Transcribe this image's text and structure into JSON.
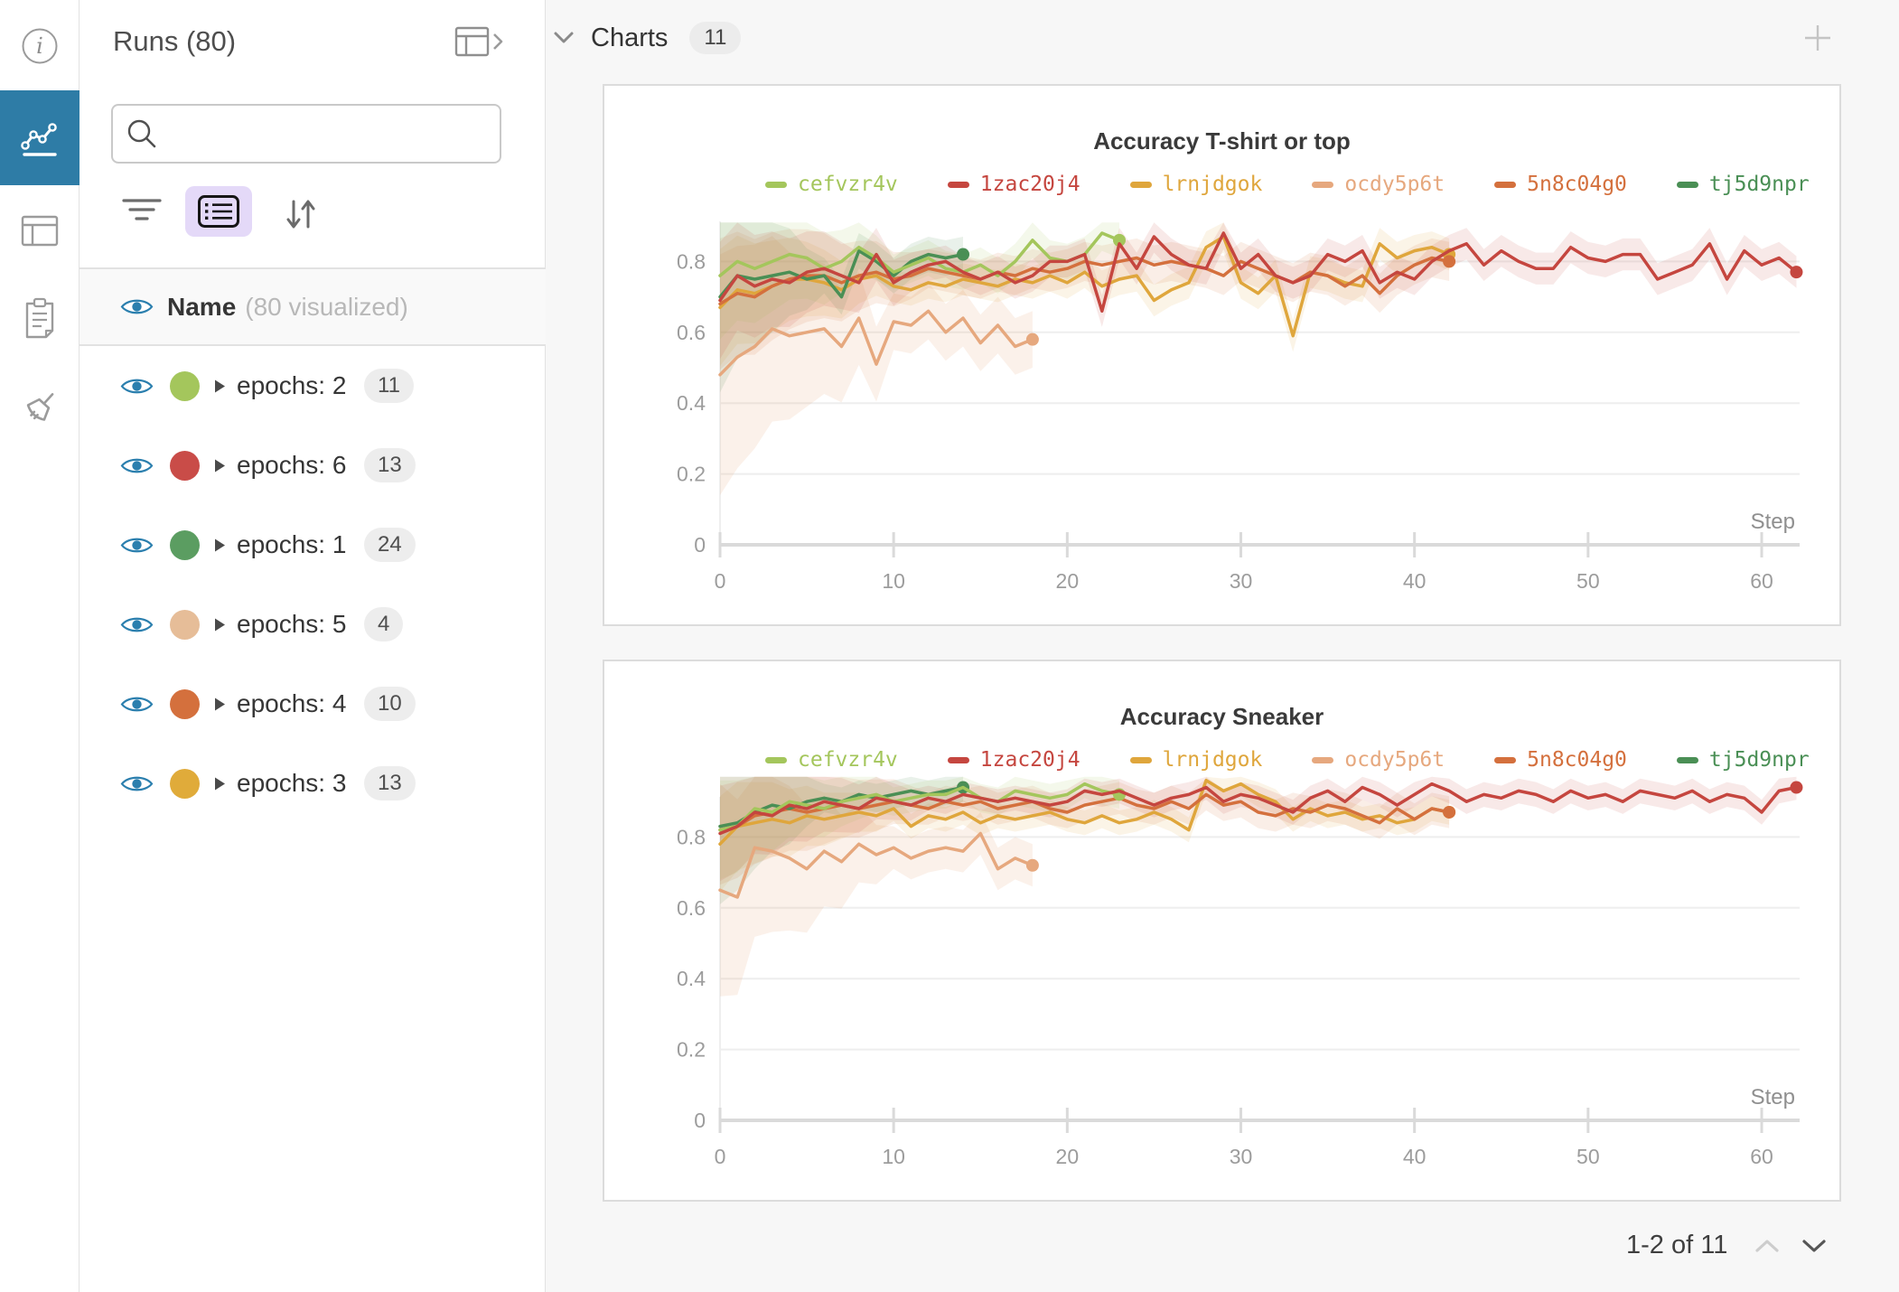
{
  "rail": {
    "items": [
      {
        "icon": "info-icon",
        "selected": false
      },
      {
        "icon": "line-chart-panel-icon",
        "selected": true
      },
      {
        "icon": "table-icon",
        "selected": false
      },
      {
        "icon": "clipboard-icon",
        "selected": false
      },
      {
        "icon": "broom-icon",
        "selected": false
      }
    ],
    "selected_bg": "#2e7ca6"
  },
  "runs_panel": {
    "title": "Runs (80)",
    "search": {
      "placeholder": "",
      "icon": "search-icon"
    },
    "header_row": {
      "label": "Name",
      "sublabel": "(80 visualized)"
    },
    "eye_color": "#2b7fae",
    "groups": [
      {
        "label": "epochs: 2",
        "count": "11",
        "color": "#a4c65c"
      },
      {
        "label": "epochs: 6",
        "count": "13",
        "color": "#c94c48"
      },
      {
        "label": "epochs: 1",
        "count": "24",
        "color": "#5b9d61"
      },
      {
        "label": "epochs: 5",
        "count": "4",
        "color": "#e6bd98"
      },
      {
        "label": "epochs: 4",
        "count": "10",
        "color": "#d4703d"
      },
      {
        "label": "epochs: 3",
        "count": "13",
        "color": "#e0ab3a"
      }
    ]
  },
  "main": {
    "section": {
      "label": "Charts",
      "count": "11"
    },
    "pagination": {
      "label": "1-2 of 11"
    }
  },
  "chart_data": [
    {
      "type": "line",
      "title": "Accuracy T-shirt or top",
      "xlabel": "Step",
      "x_ticks": [
        0,
        10,
        20,
        30,
        40,
        50,
        60
      ],
      "y_ticks": [
        0,
        0.2,
        0.4,
        0.6,
        0.8
      ],
      "xlim": [
        0,
        62
      ],
      "ylim": [
        0,
        0.95
      ],
      "grid": true,
      "legend_position": "top",
      "band_clip": [
        0.08,
        0.91
      ],
      "draw_order": [
        3,
        2,
        4,
        5,
        0,
        1
      ],
      "series": [
        {
          "name": "cefvzr4v",
          "color": "#a4c65c",
          "band": [
            0.05,
            0.13,
            10
          ],
          "band_opacity": 0.12,
          "x_start": 0,
          "x_step": 1,
          "y": [
            0.76,
            0.8,
            0.78,
            0.8,
            0.82,
            0.81,
            0.78,
            0.8,
            0.84,
            0.81,
            0.77,
            0.79,
            0.81,
            0.78,
            0.77,
            0.79,
            0.76,
            0.8,
            0.86,
            0.81,
            0.8,
            0.82,
            0.88,
            0.86
          ]
        },
        {
          "name": "1zac20j4",
          "color": "#c5463f",
          "band": [
            0.045,
            0.12,
            12
          ],
          "band_opacity": 0.12,
          "x_start": 0,
          "x_step": 1,
          "y": [
            0.69,
            0.76,
            0.73,
            0.75,
            0.74,
            0.77,
            0.78,
            0.76,
            0.74,
            0.82,
            0.74,
            0.77,
            0.79,
            0.8,
            0.77,
            0.75,
            0.77,
            0.74,
            0.76,
            0.8,
            0.8,
            0.82,
            0.66,
            0.85,
            0.78,
            0.87,
            0.82,
            0.79,
            0.78,
            0.88,
            0.78,
            0.82,
            0.76,
            0.74,
            0.76,
            0.82,
            0.8,
            0.83,
            0.74,
            0.77,
            0.75,
            0.8,
            0.83,
            0.85,
            0.79,
            0.83,
            0.8,
            0.78,
            0.78,
            0.84,
            0.81,
            0.8,
            0.82,
            0.82,
            0.75,
            0.77,
            0.79,
            0.85,
            0.75,
            0.83,
            0.79,
            0.81,
            0.77
          ]
        },
        {
          "name": "lrnjdgok",
          "color": "#dfa63c",
          "band": [
            0.045,
            0.12,
            10
          ],
          "band_opacity": 0.12,
          "x_start": 0,
          "x_step": 1,
          "y": [
            0.67,
            0.72,
            0.71,
            0.73,
            0.75,
            0.75,
            0.74,
            0.72,
            0.75,
            0.76,
            0.73,
            0.72,
            0.74,
            0.73,
            0.75,
            0.74,
            0.73,
            0.75,
            0.74,
            0.76,
            0.74,
            0.77,
            0.73,
            0.75,
            0.76,
            0.69,
            0.72,
            0.74,
            0.84,
            0.87,
            0.74,
            0.71,
            0.76,
            0.59,
            0.77,
            0.76,
            0.74,
            0.73,
            0.85,
            0.81,
            0.83,
            0.84,
            0.82
          ]
        },
        {
          "name": "ocdy5p6t",
          "color": "#e6a87e",
          "band": [
            0.08,
            0.26,
            10
          ],
          "band_opacity": 0.16,
          "x_start": 0,
          "x_step": 1,
          "y": [
            0.48,
            0.53,
            0.56,
            0.61,
            0.59,
            0.6,
            0.61,
            0.56,
            0.64,
            0.51,
            0.63,
            0.62,
            0.66,
            0.6,
            0.64,
            0.57,
            0.62,
            0.56,
            0.58
          ]
        },
        {
          "name": "5n8c04g0",
          "color": "#d4703d",
          "band": [
            0.055,
            0.13,
            12
          ],
          "band_opacity": 0.12,
          "x_start": 0,
          "x_step": 1,
          "y": [
            0.68,
            0.71,
            0.7,
            0.73,
            0.75,
            0.76,
            0.76,
            0.74,
            0.76,
            0.77,
            0.75,
            0.76,
            0.78,
            0.77,
            0.76,
            0.75,
            0.77,
            0.76,
            0.78,
            0.77,
            0.78,
            0.8,
            0.79,
            0.8,
            0.81,
            0.79,
            0.8,
            0.79,
            0.78,
            0.76,
            0.8,
            0.78,
            0.76,
            0.74,
            0.77,
            0.76,
            0.73,
            0.76,
            0.71,
            0.76,
            0.79,
            0.81,
            0.8
          ]
        },
        {
          "name": "tj5d9npr",
          "color": "#4a8f55",
          "band": [
            0.05,
            0.22,
            6
          ],
          "band_opacity": 0.12,
          "x_start": 0,
          "x_step": 1,
          "y": [
            0.7,
            0.76,
            0.75,
            0.76,
            0.77,
            0.75,
            0.76,
            0.7,
            0.83,
            0.8,
            0.76,
            0.8,
            0.82,
            0.81,
            0.82
          ]
        }
      ]
    },
    {
      "type": "line",
      "title": "Accuracy Sneaker",
      "xlabel": "Step",
      "x_ticks": [
        0,
        10,
        20,
        30,
        40,
        50,
        60
      ],
      "y_ticks": [
        0,
        0.2,
        0.4,
        0.6,
        0.8
      ],
      "xlim": [
        0,
        62
      ],
      "ylim": [
        0,
        0.97
      ],
      "grid": true,
      "legend_position": "top",
      "band_clip": [
        0.1,
        0.97
      ],
      "draw_order": [
        3,
        2,
        4,
        5,
        0,
        1
      ],
      "series": [
        {
          "name": "cefvzr4v",
          "color": "#a4c65c",
          "band": [
            0.04,
            0.1,
            10
          ],
          "band_opacity": 0.12,
          "x_start": 0,
          "x_step": 1,
          "y": [
            0.82,
            0.83,
            0.88,
            0.87,
            0.9,
            0.89,
            0.88,
            0.9,
            0.91,
            0.92,
            0.9,
            0.91,
            0.92,
            0.92,
            0.94,
            0.91,
            0.9,
            0.93,
            0.92,
            0.91,
            0.92,
            0.95,
            0.93,
            0.92
          ]
        },
        {
          "name": "1zac20j4",
          "color": "#c5463f",
          "band": [
            0.035,
            0.1,
            12
          ],
          "band_opacity": 0.12,
          "x_start": 0,
          "x_step": 1,
          "y": [
            0.81,
            0.83,
            0.87,
            0.86,
            0.89,
            0.88,
            0.9,
            0.89,
            0.88,
            0.91,
            0.9,
            0.89,
            0.91,
            0.9,
            0.92,
            0.91,
            0.9,
            0.91,
            0.9,
            0.89,
            0.9,
            0.93,
            0.92,
            0.93,
            0.91,
            0.89,
            0.91,
            0.92,
            0.94,
            0.9,
            0.92,
            0.91,
            0.89,
            0.87,
            0.91,
            0.93,
            0.9,
            0.94,
            0.92,
            0.89,
            0.92,
            0.95,
            0.93,
            0.9,
            0.92,
            0.91,
            0.93,
            0.92,
            0.9,
            0.93,
            0.91,
            0.92,
            0.9,
            0.93,
            0.92,
            0.91,
            0.93,
            0.9,
            0.92,
            0.91,
            0.87,
            0.93,
            0.94
          ]
        },
        {
          "name": "lrnjdgok",
          "color": "#dfa63c",
          "band": [
            0.035,
            0.1,
            10
          ],
          "band_opacity": 0.12,
          "x_start": 0,
          "x_step": 1,
          "y": [
            0.78,
            0.83,
            0.84,
            0.85,
            0.84,
            0.86,
            0.85,
            0.86,
            0.87,
            0.86,
            0.88,
            0.83,
            0.86,
            0.85,
            0.87,
            0.84,
            0.86,
            0.85,
            0.86,
            0.87,
            0.85,
            0.84,
            0.86,
            0.84,
            0.85,
            0.87,
            0.85,
            0.82,
            0.96,
            0.93,
            0.95,
            0.92,
            0.9,
            0.85,
            0.88,
            0.86,
            0.87,
            0.85,
            0.86,
            0.84,
            0.85,
            0.88,
            0.87
          ]
        },
        {
          "name": "ocdy5p6t",
          "color": "#e6a87e",
          "band": [
            0.06,
            0.24,
            10
          ],
          "band_opacity": 0.16,
          "x_start": 0,
          "x_step": 1,
          "y": [
            0.65,
            0.63,
            0.77,
            0.76,
            0.74,
            0.71,
            0.76,
            0.73,
            0.78,
            0.75,
            0.77,
            0.74,
            0.76,
            0.77,
            0.76,
            0.81,
            0.71,
            0.74,
            0.72
          ]
        },
        {
          "name": "5n8c04g0",
          "color": "#d4703d",
          "band": [
            0.045,
            0.11,
            12
          ],
          "band_opacity": 0.12,
          "x_start": 0,
          "x_step": 1,
          "y": [
            0.82,
            0.83,
            0.86,
            0.87,
            0.88,
            0.87,
            0.88,
            0.89,
            0.88,
            0.89,
            0.9,
            0.89,
            0.88,
            0.9,
            0.89,
            0.9,
            0.88,
            0.89,
            0.9,
            0.88,
            0.87,
            0.89,
            0.9,
            0.91,
            0.89,
            0.88,
            0.9,
            0.88,
            0.92,
            0.89,
            0.9,
            0.87,
            0.86,
            0.88,
            0.87,
            0.89,
            0.88,
            0.86,
            0.84,
            0.88,
            0.85,
            0.88,
            0.87
          ]
        },
        {
          "name": "tj5d9npr",
          "color": "#4a8f55",
          "band": [
            0.04,
            0.18,
            6
          ],
          "band_opacity": 0.12,
          "x_start": 0,
          "x_step": 1,
          "y": [
            0.83,
            0.84,
            0.87,
            0.89,
            0.88,
            0.9,
            0.91,
            0.9,
            0.92,
            0.91,
            0.92,
            0.93,
            0.92,
            0.93,
            0.94
          ]
        }
      ]
    }
  ]
}
